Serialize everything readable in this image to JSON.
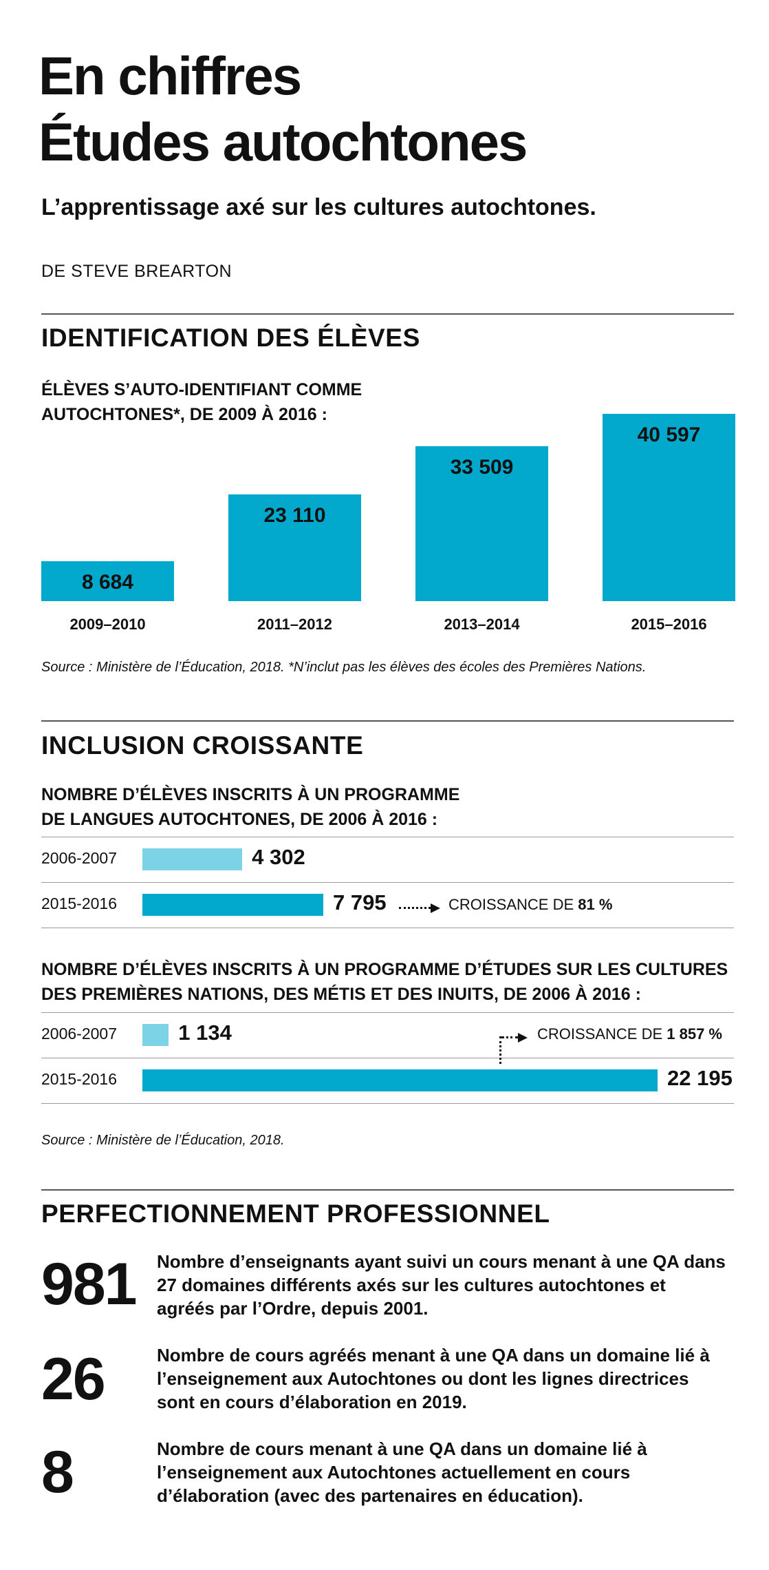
{
  "header": {
    "title_line1": "En chiffres",
    "title_line2": "Études autochtones",
    "subtitle": "L’apprentissage axé sur les cultures autochtones.",
    "byline": "DE STEVE BREARTON"
  },
  "colors": {
    "bar_primary": "#02a9cc",
    "bar_light": "#7dd3e6",
    "text": "#111111"
  },
  "section1": {
    "heading": "IDENTIFICATION DES ÉLÈVES",
    "caption_line1": "ÉLÈVES S’AUTO-IDENTIFIANT COMME",
    "caption_line2": "AUTOCHTONES*, DE 2009 À 2016 :",
    "source": "Source : Ministère de l’Éducation, 2018. *N’inclut pas les élèves des écoles des Premières Nations."
  },
  "section2": {
    "heading": "INCLUSION CROISSANTE",
    "chart1_caption_line1": "NOMBRE D’ÉLÈVES INSCRITS À UN PROGRAMME",
    "chart1_caption_line2": "DE LANGUES AUTOCHTONES, DE 2006 À 2016 :",
    "chart1_growth_prefix": "CROISSANCE DE ",
    "chart1_growth_value": "81 %",
    "chart2_caption_line1": "NOMBRE D’ÉLÈVES INSCRITS À UN PROGRAMME D’ÉTUDES SUR LES CULTURES",
    "chart2_caption_line2": "DES PREMIÈRES NATIONS, DES MÉTIS ET DES INUITS, DE 2006 À 2016 :",
    "chart2_growth_prefix": "CROISSANCE DE ",
    "chart2_growth_value": "1 857 %",
    "source": "Source : Ministère de l’Éducation, 2018."
  },
  "section3": {
    "heading": "PERFECTIONNEMENT PROFESSIONNEL",
    "items": [
      {
        "number": "981",
        "text": "Nombre d’enseignants ayant suivi un cours menant à une QA dans 27 domaines différents axés sur les cultures autochtones et agréés par l’Ordre, depuis 2001."
      },
      {
        "number": "26",
        "text": "Nombre de cours agréés menant à une QA dans un domaine lié à l’enseignement aux Autochtones ou dont les lignes directrices sont en cours d’élaboration en 2019."
      },
      {
        "number": "8",
        "text": "Nombre de cours menant à une QA dans un domaine lié à l’enseignement aux Autochtones actuellement en cours d’élaboration (avec des partenaires en éducation)."
      }
    ]
  },
  "chart_data": [
    {
      "type": "bar",
      "categories": [
        "2009–2010",
        "2011–2012",
        "2013–2014",
        "2015–2016"
      ],
      "values": [
        8684,
        23110,
        33509,
        40597
      ],
      "value_labels": [
        "8 684",
        "23 110",
        "33 509",
        "40 597"
      ],
      "title": "ÉLÈVES S’AUTO-IDENTIFIANT COMME AUTOCHTONES*, DE 2009 À 2016 :"
    },
    {
      "type": "bar",
      "orientation": "horizontal",
      "categories": [
        "2006-2007",
        "2015-2016"
      ],
      "values": [
        4302,
        7795
      ],
      "value_labels": [
        "4 302",
        "7 795"
      ],
      "title": "NOMBRE D’ÉLÈVES INSCRITS À UN PROGRAMME DE LANGUES AUTOCHTONES, DE 2006 À 2016 :"
    },
    {
      "type": "bar",
      "orientation": "horizontal",
      "categories": [
        "2006-2007",
        "2015-2016"
      ],
      "values": [
        1134,
        22195
      ],
      "value_labels": [
        "1 134",
        "22 195"
      ],
      "title": "NOMBRE D’ÉLÈVES INSCRITS À UN PROGRAMME D’ÉTUDES SUR LES CULTURES DES PREMIÈRES NATIONS, DES MÉTIS ET DES INUITS, DE 2006 À 2016 :"
    }
  ]
}
